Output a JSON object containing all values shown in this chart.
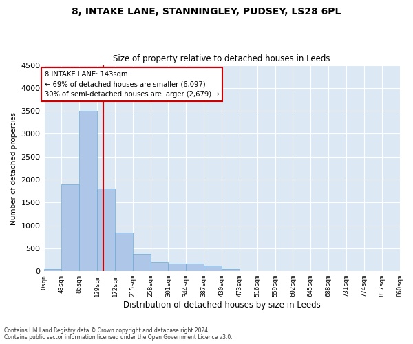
{
  "title": "8, INTAKE LANE, STANNINGLEY, PUDSEY, LS28 6PL",
  "subtitle": "Size of property relative to detached houses in Leeds",
  "xlabel": "Distribution of detached houses by size in Leeds",
  "ylabel": "Number of detached properties",
  "footer_line1": "Contains HM Land Registry data © Crown copyright and database right 2024.",
  "footer_line2": "Contains public sector information licensed under the Open Government Licence v3.0.",
  "annotation_line1": "8 INTAKE LANE: 143sqm",
  "annotation_line2": "← 69% of detached houses are smaller (6,097)",
  "annotation_line3": "30% of semi-detached houses are larger (2,679) →",
  "property_size": 143,
  "bin_edges": [
    0,
    43,
    86,
    129,
    172,
    215,
    258,
    301,
    344,
    387,
    430,
    473,
    516,
    559,
    602,
    645,
    688,
    731,
    774,
    817,
    860
  ],
  "bar_heights": [
    50,
    1900,
    3500,
    1800,
    850,
    380,
    200,
    170,
    170,
    120,
    50,
    0,
    0,
    0,
    0,
    0,
    0,
    0,
    0,
    0
  ],
  "bar_color": "#aec6e8",
  "bar_edge_color": "#6aaad4",
  "line_color": "#cc0000",
  "annotation_box_color": "#cc0000",
  "background_color": "#dce9f5",
  "ylim": [
    0,
    4500
  ],
  "yticks": [
    0,
    500,
    1000,
    1500,
    2000,
    2500,
    3000,
    3500,
    4000,
    4500
  ]
}
